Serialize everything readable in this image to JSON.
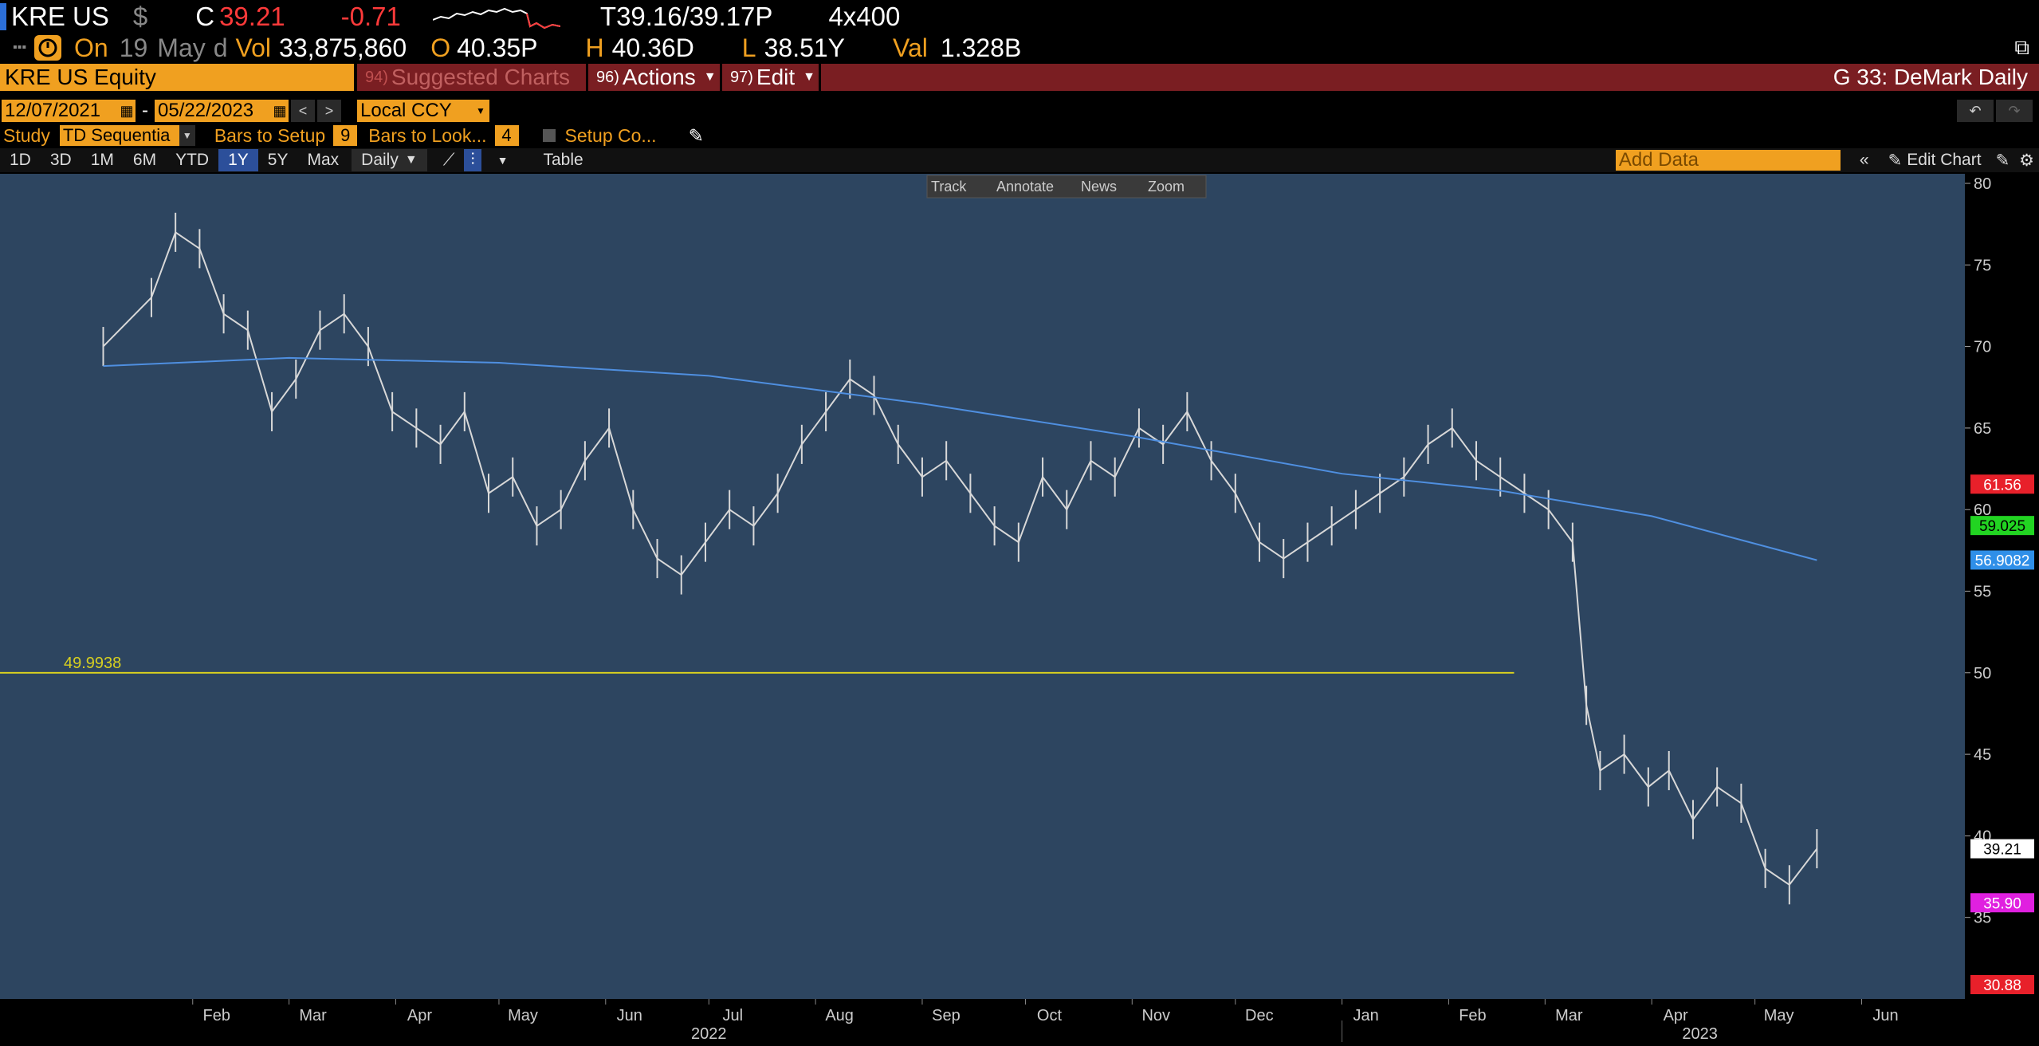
{
  "header": {
    "ticker": "KRE US",
    "currency_symbol": "$",
    "close_label": "C",
    "close": "39.21",
    "change": "-0.71",
    "bid_ask_prefix": "T",
    "bid": "39.16",
    "ask": "39.17",
    "ask_suffix": "P",
    "size": "4x400",
    "on_label": "On",
    "date_day": "19",
    "date_month": "May",
    "date_suffix": "d",
    "vol_label": "Vol",
    "volume": "33,875,860",
    "open_label": "O",
    "open": "40.35P",
    "high_label": "H",
    "high": "40.36D",
    "low_label": "L",
    "low": "38.51Y",
    "val_label": "Val",
    "value": "1.328B"
  },
  "toolbar": {
    "security": "KRE US Equity",
    "suggested": {
      "num": "94)",
      "label": "Suggested Charts"
    },
    "actions": {
      "num": "96)",
      "label": "Actions"
    },
    "edit": {
      "num": "97)",
      "label": "Edit"
    },
    "chart_title": "G 33: DeMark Daily"
  },
  "range": {
    "start": "12/07/2021",
    "separator": "-",
    "end": "05/22/2023",
    "currency": "Local CCY"
  },
  "study": {
    "label": "Study",
    "value": "TD Sequentia",
    "bars_setup_label": "Bars to Setup",
    "bars_setup": "9",
    "bars_look_label": "Bars to Look...",
    "bars_look": "4",
    "setup_co_label": "Setup Co..."
  },
  "periods": [
    "1D",
    "3D",
    "1M",
    "6M",
    "YTD",
    "1Y",
    "5Y",
    "Max"
  ],
  "active_period": "1Y",
  "frequency": "Daily",
  "table_label": "Table",
  "add_data_placeholder": "Add Data",
  "edit_chart_label": "Edit Chart",
  "chart_tools": [
    "Track",
    "Annotate",
    "News",
    "Zoom"
  ],
  "chart_data": {
    "type": "line",
    "title": "",
    "xlabel": "",
    "ylabel": "",
    "ylim": [
      30,
      80
    ],
    "y_ticks": [
      35,
      40,
      45,
      50,
      55,
      60,
      65,
      70,
      75,
      80
    ],
    "x_ticks": [
      "Feb",
      "Mar",
      "Apr",
      "May",
      "Jun",
      "Jul",
      "Aug",
      "Sep",
      "Oct",
      "Nov",
      "Dec",
      "Jan",
      "Feb",
      "Mar",
      "Apr",
      "May",
      "Jun"
    ],
    "x_year_labels": [
      "2022",
      "2023"
    ],
    "series": [
      {
        "name": "",
        "color": "#d8d8d8",
        "x": [
          "2022-01-06",
          "2022-01-20",
          "2022-01-27",
          "2022-02-03",
          "2022-02-10",
          "2022-02-17",
          "2022-02-24",
          "2022-03-03",
          "2022-03-10",
          "2022-03-17",
          "2022-03-24",
          "2022-03-31",
          "2022-04-07",
          "2022-04-14",
          "2022-04-21",
          "2022-04-28",
          "2022-05-05",
          "2022-05-12",
          "2022-05-19",
          "2022-05-26",
          "2022-06-02",
          "2022-06-09",
          "2022-06-16",
          "2022-06-23",
          "2022-06-30",
          "2022-07-07",
          "2022-07-14",
          "2022-07-21",
          "2022-07-28",
          "2022-08-04",
          "2022-08-11",
          "2022-08-18",
          "2022-08-25",
          "2022-09-01",
          "2022-09-08",
          "2022-09-15",
          "2022-09-22",
          "2022-09-29",
          "2022-10-06",
          "2022-10-13",
          "2022-10-20",
          "2022-10-27",
          "2022-11-03",
          "2022-11-10",
          "2022-11-17",
          "2022-11-24",
          "2022-12-01",
          "2022-12-08",
          "2022-12-15",
          "2022-12-22",
          "2022-12-29",
          "2023-01-05",
          "2023-01-12",
          "2023-01-19",
          "2023-01-26",
          "2023-02-02",
          "2023-02-09",
          "2023-02-16",
          "2023-02-23",
          "2023-03-02",
          "2023-03-09",
          "2023-03-13",
          "2023-03-17",
          "2023-03-24",
          "2023-03-31",
          "2023-04-06",
          "2023-04-13",
          "2023-04-20",
          "2023-04-27",
          "2023-05-04",
          "2023-05-11",
          "2023-05-19"
        ],
        "values": [
          70,
          73,
          77,
          76,
          72,
          71,
          66,
          68,
          71,
          72,
          70,
          66,
          65,
          64,
          66,
          61,
          62,
          59,
          60,
          63,
          65,
          60,
          57,
          56,
          58,
          60,
          59,
          61,
          64,
          66,
          68,
          67,
          64,
          62,
          63,
          61,
          59,
          58,
          62,
          60,
          63,
          62,
          65,
          64,
          66,
          63,
          61,
          58,
          57,
          58,
          59,
          60,
          61,
          62,
          64,
          65,
          63,
          62,
          61,
          60,
          58,
          48,
          44,
          45,
          43,
          44,
          41,
          43,
          42,
          38,
          37,
          39.21
        ]
      },
      {
        "name": "",
        "color": "#4f8fe0",
        "x": [
          "2022-01-06",
          "2022-03-01",
          "2022-05-01",
          "2022-07-01",
          "2022-09-01",
          "2022-11-01",
          "2023-01-01",
          "2023-02-15",
          "2023-04-01",
          "2023-05-19"
        ],
        "values": [
          68.8,
          69.3,
          69.0,
          68.2,
          66.5,
          64.5,
          62.2,
          61.2,
          59.6,
          56.9
        ]
      }
    ],
    "price_tags": [
      {
        "value": "61.56",
        "color": "#e8202a"
      },
      {
        "value": "59.025",
        "color": "#22d422"
      },
      {
        "value": "56.9082",
        "color": "#2f8fe8"
      },
      {
        "value": "39.21",
        "color": "#ffffff"
      },
      {
        "value": "35.90",
        "color": "#e020e0"
      },
      {
        "value": "30.88",
        "color": "#e8202a"
      }
    ],
    "annotations": [
      "49.9938"
    ]
  }
}
